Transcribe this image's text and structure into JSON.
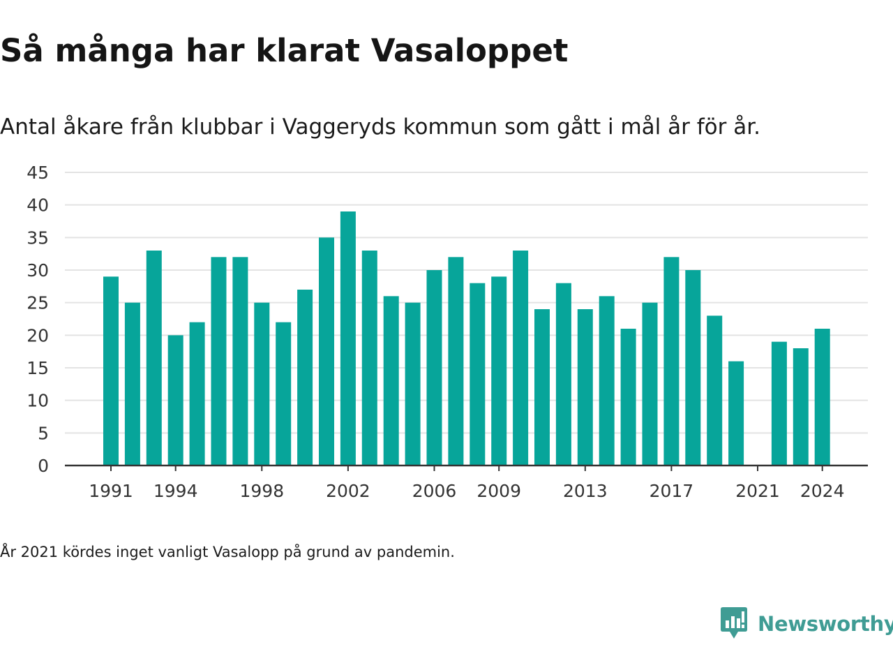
{
  "header": {
    "title": "Så många har klarat Vasaloppet",
    "subtitle": "Antal åkare från klubbar i Vaggeryds kommun som gått i mål år för år."
  },
  "footnote": "År 2021 kördes inget vanligt Vasalopp på grund av pandemin.",
  "brand": {
    "name": "Newsworthy",
    "icon": "newsworthy-logo-icon"
  },
  "colors": {
    "bar": "#07A59A",
    "brand": "#3f9c94",
    "grid": "#e3e3e3",
    "axis": "#333333"
  },
  "chart_data": {
    "type": "bar",
    "x": [
      1991,
      1992,
      1993,
      1994,
      1995,
      1996,
      1997,
      1998,
      1999,
      2000,
      2001,
      2002,
      2003,
      2004,
      2005,
      2006,
      2007,
      2008,
      2009,
      2010,
      2011,
      2012,
      2013,
      2014,
      2015,
      2016,
      2017,
      2018,
      2019,
      2020,
      2021,
      2022,
      2023,
      2024
    ],
    "values": [
      29,
      25,
      33,
      20,
      22,
      32,
      32,
      25,
      22,
      27,
      35,
      39,
      33,
      26,
      25,
      30,
      32,
      28,
      29,
      33,
      24,
      28,
      24,
      26,
      21,
      25,
      32,
      30,
      23,
      16,
      null,
      19,
      18,
      21
    ],
    "x_tick_labels": [
      "1991",
      "1994",
      "1998",
      "2002",
      "2006",
      "2009",
      "2013",
      "2017",
      "2021",
      "2024"
    ],
    "y_ticks": [
      0,
      5,
      10,
      15,
      20,
      25,
      30,
      35,
      40,
      45
    ],
    "ylim": [
      0,
      45
    ],
    "grid": "horizontal",
    "legend": "none"
  }
}
